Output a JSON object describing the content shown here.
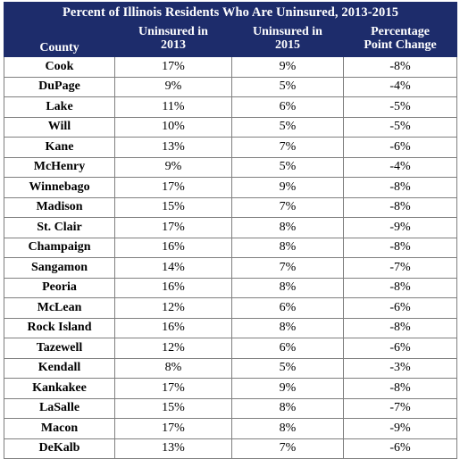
{
  "title": "Percent of Illinois Residents Who Are Uninsured, 2013-2015",
  "headers": {
    "county": "County",
    "uninsured_2013": [
      "Uninsured in",
      "2013"
    ],
    "uninsured_2015": [
      "Uninsured in",
      "2015"
    ],
    "change": [
      "Percentage",
      "Point Change"
    ]
  },
  "rows": [
    {
      "county": "Cook",
      "y2013": "17%",
      "y2015": "9%",
      "change": "-8%"
    },
    {
      "county": "DuPage",
      "y2013": "9%",
      "y2015": "5%",
      "change": "-4%"
    },
    {
      "county": "Lake",
      "y2013": "11%",
      "y2015": "6%",
      "change": "-5%"
    },
    {
      "county": "Will",
      "y2013": "10%",
      "y2015": "5%",
      "change": "-5%"
    },
    {
      "county": "Kane",
      "y2013": "13%",
      "y2015": "7%",
      "change": "-6%"
    },
    {
      "county": "McHenry",
      "y2013": "9%",
      "y2015": "5%",
      "change": "-4%"
    },
    {
      "county": "Winnebago",
      "y2013": "17%",
      "y2015": "9%",
      "change": "-8%"
    },
    {
      "county": "Madison",
      "y2013": "15%",
      "y2015": "7%",
      "change": "-8%"
    },
    {
      "county": "St. Clair",
      "y2013": "17%",
      "y2015": "8%",
      "change": "-9%"
    },
    {
      "county": "Champaign",
      "y2013": "16%",
      "y2015": "8%",
      "change": "-8%"
    },
    {
      "county": "Sangamon",
      "y2013": "14%",
      "y2015": "7%",
      "change": "-7%"
    },
    {
      "county": "Peoria",
      "y2013": "16%",
      "y2015": "8%",
      "change": "-8%"
    },
    {
      "county": "McLean",
      "y2013": "12%",
      "y2015": "6%",
      "change": "-6%"
    },
    {
      "county": "Rock Island",
      "y2013": "16%",
      "y2015": "8%",
      "change": "-8%"
    },
    {
      "county": "Tazewell",
      "y2013": "12%",
      "y2015": "6%",
      "change": "-6%"
    },
    {
      "county": "Kendall",
      "y2013": "8%",
      "y2015": "5%",
      "change": "-3%"
    },
    {
      "county": "Kankakee",
      "y2013": "17%",
      "y2015": "9%",
      "change": "-8%"
    },
    {
      "county": "LaSalle",
      "y2013": "15%",
      "y2015": "8%",
      "change": "-7%"
    },
    {
      "county": "Macon",
      "y2013": "17%",
      "y2015": "8%",
      "change": "-9%"
    },
    {
      "county": "DeKalb",
      "y2013": "13%",
      "y2015": "7%",
      "change": "-6%"
    }
  ],
  "colors": {
    "header_bg": "#1d2c6b",
    "header_text": "#ffffff",
    "border": "#7f7f7f"
  }
}
